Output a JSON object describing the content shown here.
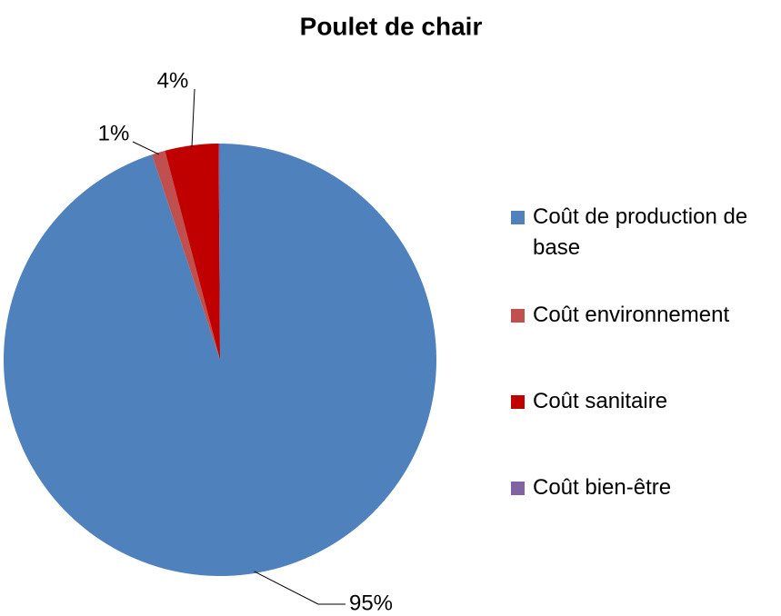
{
  "chart_data": {
    "type": "pie",
    "title": "Poulet de chair",
    "categories": [
      "Coût de production de base",
      "Coût environnement",
      "Coût sanitaire",
      "Coût bien-être"
    ],
    "values": [
      95,
      1,
      4,
      0.1
    ],
    "value_labels": [
      "95%",
      "1%",
      "4%",
      null
    ],
    "colors": [
      "#4f81bd",
      "#c0504d",
      "#c00000",
      "#8064a2"
    ],
    "legend": "right"
  }
}
